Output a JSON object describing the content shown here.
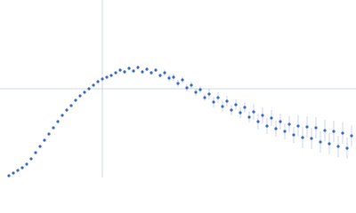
{
  "chart_data": {
    "type": "scatter",
    "xlim": [
      0,
      400
    ],
    "ylim": [
      0,
      200
    ],
    "xticks": [
      115
    ],
    "yticks": [
      100
    ],
    "grid": true,
    "series": [
      {
        "color": "#3b67bf",
        "x": [
          10,
          15,
          20,
          25,
          30,
          35,
          40,
          45,
          50,
          55,
          60,
          65,
          70,
          75,
          80,
          85,
          90,
          95,
          100,
          105,
          110,
          115,
          120,
          125,
          130,
          135,
          140,
          145,
          150,
          155,
          160,
          165,
          170,
          175,
          180,
          185,
          190,
          195,
          200,
          205,
          210,
          215,
          220,
          225,
          230,
          235,
          240,
          245,
          250,
          255,
          260,
          265,
          270,
          275,
          280,
          285,
          290,
          295,
          300,
          305,
          310,
          315,
          320,
          325,
          330,
          335,
          340,
          345,
          350,
          355,
          360,
          365,
          370,
          375,
          380,
          385,
          390,
          395
        ],
        "values": [
          2,
          5,
          8,
          11,
          15,
          21,
          28,
          35,
          42,
          49,
          56,
          63,
          70,
          76,
          81,
          87,
          92,
          96,
          100,
          104,
          108,
          111,
          113,
          115,
          118,
          121,
          119,
          123,
          120,
          124,
          119,
          122,
          118,
          121,
          115,
          118,
          112,
          113,
          106,
          110,
          101,
          104,
          96,
          99,
          90,
          94,
          85,
          90,
          80,
          86,
          76,
          82,
          73,
          79,
          68,
          74,
          63,
          70,
          58,
          67,
          55,
          63,
          52,
          60,
          48,
          58,
          45,
          57,
          44,
          56,
          40,
          53,
          38,
          52,
          35,
          50,
          33,
          47
        ],
        "errors": [
          0.5,
          0.5,
          0.5,
          0.5,
          0.5,
          0.5,
          0.5,
          0.5,
          0.5,
          0.5,
          0.5,
          0.5,
          0.5,
          0.5,
          0.5,
          0.5,
          0.5,
          0.5,
          0.5,
          1,
          1,
          1,
          1,
          1,
          1,
          2,
          2,
          2,
          2,
          2,
          2,
          2,
          2,
          2,
          2,
          4,
          4,
          4,
          4,
          4,
          4,
          4,
          4,
          4,
          4,
          6,
          6,
          6,
          6,
          6,
          6,
          6,
          6,
          6,
          6,
          9,
          9,
          9,
          9,
          9,
          9,
          9,
          9,
          9,
          9,
          12,
          12,
          12,
          12,
          12,
          12,
          12,
          12,
          12,
          12,
          12,
          12,
          12
        ]
      }
    ]
  }
}
